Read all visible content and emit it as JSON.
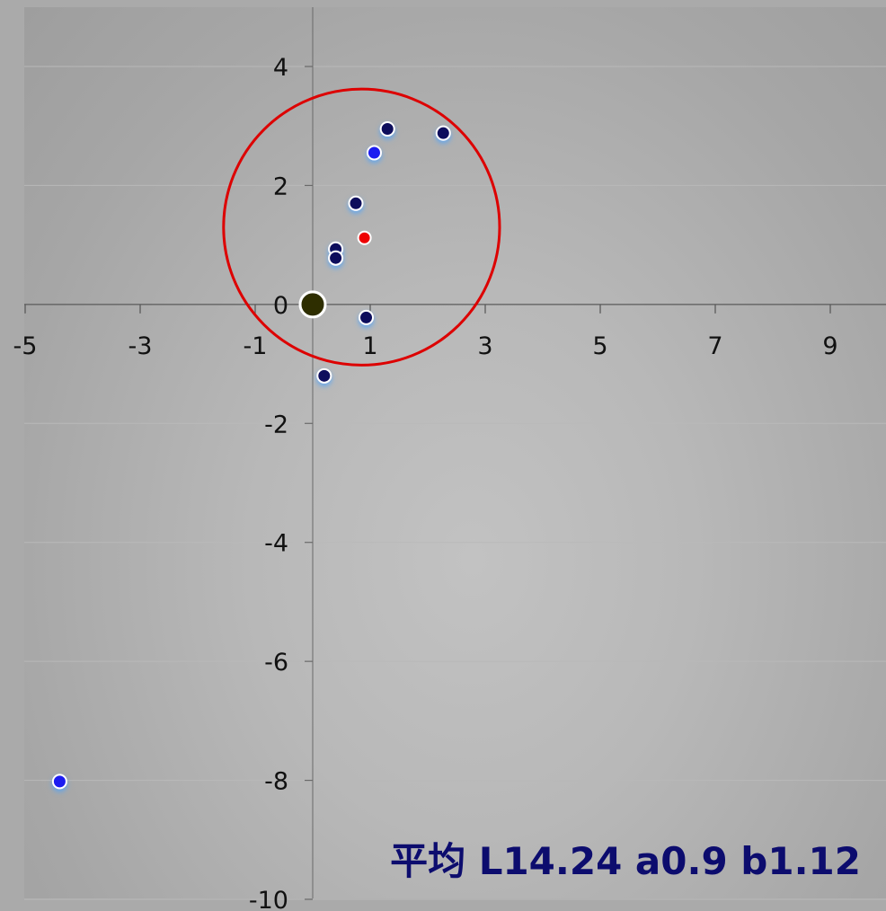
{
  "chart_data": {
    "type": "scatter",
    "title": "",
    "xlabel": "",
    "ylabel": "",
    "xlim": [
      -5,
      10
    ],
    "ylim": [
      -10,
      5
    ],
    "x_ticks": [
      -5,
      -3,
      -1,
      1,
      3,
      5,
      7,
      9
    ],
    "y_ticks": [
      4,
      2,
      0,
      -2,
      -4,
      -6,
      -8,
      -10
    ],
    "x_tick_labels": [
      "-5",
      "-3",
      "-1",
      "1",
      "3",
      "5",
      "7",
      "9"
    ],
    "y_tick_labels": [
      "4",
      "2",
      "0",
      "-2",
      "-4",
      "-6",
      "-8",
      "-10"
    ],
    "grid": true,
    "series": [
      {
        "color": "#0b0b5c",
        "points": [
          {
            "x": 1.3,
            "y": 2.95
          },
          {
            "x": 2.27,
            "y": 2.88
          },
          {
            "x": 0.75,
            "y": 1.7
          },
          {
            "x": 0.4,
            "y": 0.93
          },
          {
            "x": 0.4,
            "y": 0.78
          },
          {
            "x": 0.93,
            "y": -0.22
          },
          {
            "x": 0.2,
            "y": -1.2
          }
        ]
      },
      {
        "color": "#1a1af0",
        "points": [
          {
            "x": 1.07,
            "y": 2.55
          },
          {
            "x": -4.4,
            "y": -8.02
          }
        ]
      }
    ],
    "mean_point": {
      "x": 0.9,
      "y": 1.12,
      "color": "#ee0000"
    },
    "origin_marker": {
      "x": 0,
      "y": 0,
      "color": "#2e2e00"
    },
    "circle": {
      "cx": 0.85,
      "cy": 1.3,
      "r": 2.4,
      "color": "#dd0000"
    },
    "annotation": "平均 L14.24 a0.9 b1.12"
  }
}
